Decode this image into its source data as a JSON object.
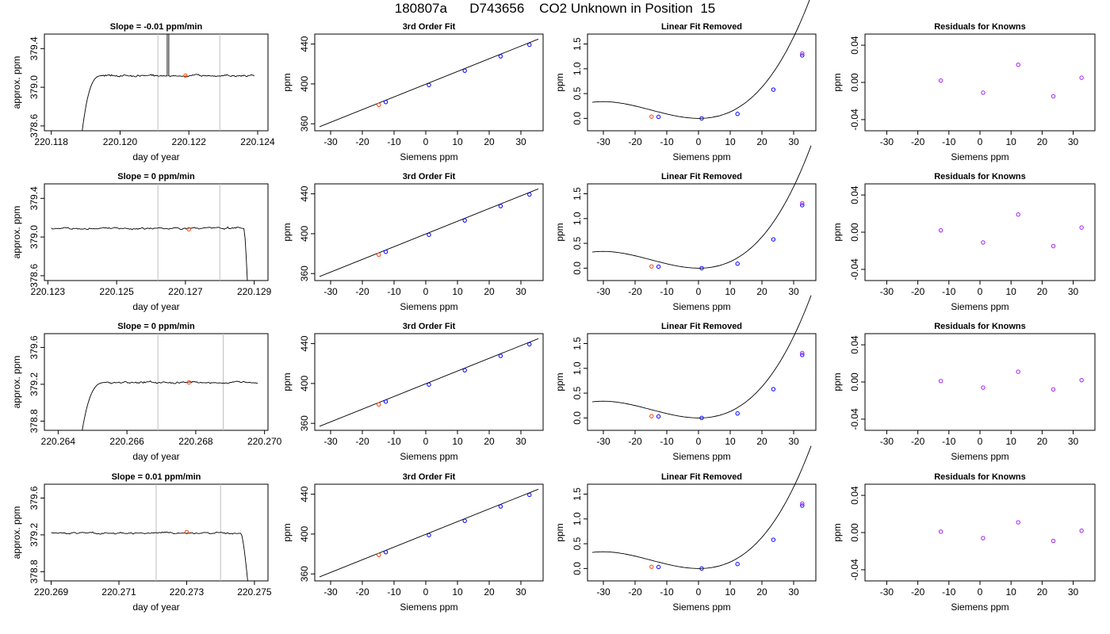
{
  "page_title": "180807a      D743656    CO2 Unknown in Position  15",
  "colors": {
    "trace": "#000000",
    "known": "#0000ff",
    "unknown": "#ff4500",
    "residual": "#a020f0",
    "window": "#bebebe"
  },
  "axis_labels": {
    "time_x": "day of year",
    "time_y": "approx. ppm",
    "fit_x": "Siemens ppm",
    "fit_y": "ppm"
  },
  "panel_titles": {
    "fit": "3rd Order Fit",
    "linear": "Linear Fit Removed",
    "residual": "Residuals for Knowns"
  },
  "shared_ticks": {
    "siemens_x": {
      "ticks": [
        -30,
        -20,
        -10,
        0,
        10,
        20,
        30
      ],
      "labels": [
        "-30",
        "-20",
        "-10",
        "0",
        "10",
        "20",
        "30"
      ]
    },
    "fit_y": {
      "ticks": [
        360,
        400,
        440
      ],
      "labels": [
        "360",
        "400",
        "440"
      ]
    },
    "linear_y": {
      "ticks": [
        0,
        0.5,
        1.0,
        1.5
      ],
      "labels": [
        "0.0",
        "0.5",
        "1.0",
        "1.5"
      ]
    },
    "residual_y": {
      "ticks": [
        -0.04,
        0,
        0.04
      ],
      "labels": [
        "-0.04",
        "0.00",
        "0.04"
      ]
    }
  },
  "chart_data": [
    {
      "type": "line",
      "panel": "time-series",
      "row": 1,
      "title": "Slope =  -0.01  ppm/min",
      "xlim": [
        220.1178,
        220.1243
      ],
      "ylim": [
        378.55,
        379.55
      ],
      "xticks": [
        220.118,
        220.12,
        220.122,
        220.124
      ],
      "xtick_labels": [
        "220.118",
        "220.120",
        "220.122",
        "220.124"
      ],
      "yticks": [
        378.6,
        379.0,
        379.4
      ],
      "ytick_labels": [
        "378.6",
        "379.0",
        "379.4"
      ],
      "trace_start": 220.1189,
      "trace_end": 220.1239,
      "rise_end": 220.1195,
      "start_value": 378.55,
      "plateau": 379.12,
      "spike_at": 220.12137,
      "spike_value": 379.55,
      "window": [
        220.1211,
        220.1229
      ],
      "unknown_point": {
        "x": 220.1219,
        "y": 379.12
      }
    },
    {
      "type": "line",
      "panel": "time-series",
      "row": 2,
      "title": "Slope =  0  ppm/min",
      "xlim": [
        220.1229,
        220.1294
      ],
      "ylim": [
        378.55,
        379.55
      ],
      "xticks": [
        220.123,
        220.125,
        220.127,
        220.129
      ],
      "xtick_labels": [
        "220.123",
        "220.125",
        "220.127",
        "220.129"
      ],
      "yticks": [
        378.6,
        379.0,
        379.4
      ],
      "ytick_labels": [
        "378.6",
        "379.0",
        "379.4"
      ],
      "trace_start": 220.1231,
      "trace_end": 220.1288,
      "fall_start": 220.1287,
      "end_value": 378.55,
      "plateau": 379.09,
      "window": [
        220.1262,
        220.128
      ],
      "unknown_point": {
        "x": 220.1271,
        "y": 379.08
      }
    },
    {
      "type": "line",
      "panel": "time-series",
      "row": 3,
      "title": "Slope =  0  ppm/min",
      "xlim": [
        220.2636,
        220.2701
      ],
      "ylim": [
        378.7,
        379.75
      ],
      "xticks": [
        220.264,
        220.266,
        220.268,
        220.27
      ],
      "xtick_labels": [
        "220.264",
        "220.266",
        "220.268",
        "220.270"
      ],
      "yticks": [
        378.8,
        379.2,
        379.6
      ],
      "ytick_labels": [
        "378.8",
        "379.2",
        "379.6"
      ],
      "trace_start": 220.2647,
      "trace_end": 220.2698,
      "rise_end": 220.2654,
      "start_value": 378.7,
      "plateau": 379.22,
      "window": [
        220.2669,
        220.2688
      ],
      "unknown_point": {
        "x": 220.2678,
        "y": 379.22
      }
    },
    {
      "type": "line",
      "panel": "time-series",
      "row": 4,
      "title": "Slope =  0.01  ppm/min",
      "xlim": [
        220.2688,
        220.2754
      ],
      "ylim": [
        378.7,
        379.75
      ],
      "xticks": [
        220.269,
        220.271,
        220.273,
        220.275
      ],
      "xtick_labels": [
        "220.269",
        "220.271",
        "220.273",
        "220.275"
      ],
      "yticks": [
        378.8,
        379.2,
        379.6
      ],
      "ytick_labels": [
        "378.8",
        "379.2",
        "379.6"
      ],
      "trace_start": 220.269,
      "trace_end": 220.2748,
      "fall_start": 220.2746,
      "end_value": 378.7,
      "plateau": 379.22,
      "window": [
        220.2721,
        220.274
      ],
      "unknown_point": {
        "x": 220.273,
        "y": 379.23
      }
    },
    {
      "type": "scatter",
      "panel": "fit",
      "rows": [
        1,
        2,
        3,
        4
      ],
      "xlim": [
        -35,
        37
      ],
      "ylim": [
        353,
        450
      ],
      "fit_line": [
        [
          -33.5,
          357
        ],
        [
          35.5,
          445
        ]
      ],
      "known_points": [
        [
          -12.6,
          381.8
        ],
        [
          1.0,
          398.9
        ],
        [
          12.3,
          413.3
        ],
        [
          23.6,
          427.7
        ],
        [
          32.7,
          439.3
        ]
      ],
      "unknown_point": [
        -14.8,
        379.0
      ]
    },
    {
      "type": "scatter",
      "panel": "linear-fit-removed",
      "rows": [
        1,
        2,
        3,
        4
      ],
      "xlim": [
        -35,
        37
      ],
      "ylim": [
        -0.25,
        1.7
      ],
      "curve_coeffs": [
        0.0,
        -0.0003,
        0.0011,
        2.45e-05
      ],
      "curve_range": [
        -33.5,
        35.5
      ],
      "known_points": [
        [
          -12.6,
          0.03
        ],
        [
          1.0,
          0.0
        ],
        [
          12.3,
          0.09
        ],
        [
          23.6,
          0.58
        ],
        [
          32.7,
          1.27
        ]
      ],
      "known_points_alt": [
        [
          32.7,
          1.31
        ]
      ],
      "unknown_point": [
        -14.8,
        0.035
      ]
    },
    {
      "type": "scatter",
      "panel": "residuals",
      "row": 1,
      "xlim": [
        -37,
        37
      ],
      "ylim": [
        -0.052,
        0.052
      ],
      "points": [
        [
          -12.6,
          0.002
        ],
        [
          1.0,
          -0.011
        ],
        [
          12.3,
          0.019
        ],
        [
          23.6,
          -0.015
        ],
        [
          32.7,
          0.005
        ]
      ]
    },
    {
      "type": "scatter",
      "panel": "residuals",
      "row": 2,
      "xlim": [
        -37,
        37
      ],
      "ylim": [
        -0.052,
        0.052
      ],
      "points": [
        [
          -12.6,
          0.002
        ],
        [
          1.0,
          -0.011
        ],
        [
          12.3,
          0.019
        ],
        [
          23.6,
          -0.015
        ],
        [
          32.7,
          0.005
        ]
      ]
    },
    {
      "type": "scatter",
      "panel": "residuals",
      "row": 3,
      "xlim": [
        -37,
        37
      ],
      "ylim": [
        -0.052,
        0.052
      ],
      "points": [
        [
          -12.6,
          0.001
        ],
        [
          1.0,
          -0.006
        ],
        [
          12.3,
          0.011
        ],
        [
          23.6,
          -0.008
        ],
        [
          32.7,
          0.002
        ]
      ]
    },
    {
      "type": "scatter",
      "panel": "residuals",
      "row": 4,
      "xlim": [
        -37,
        37
      ],
      "ylim": [
        -0.052,
        0.052
      ],
      "points": [
        [
          -12.6,
          0.001
        ],
        [
          1.0,
          -0.006
        ],
        [
          12.3,
          0.011
        ],
        [
          23.6,
          -0.009
        ],
        [
          32.7,
          0.002
        ]
      ]
    }
  ]
}
